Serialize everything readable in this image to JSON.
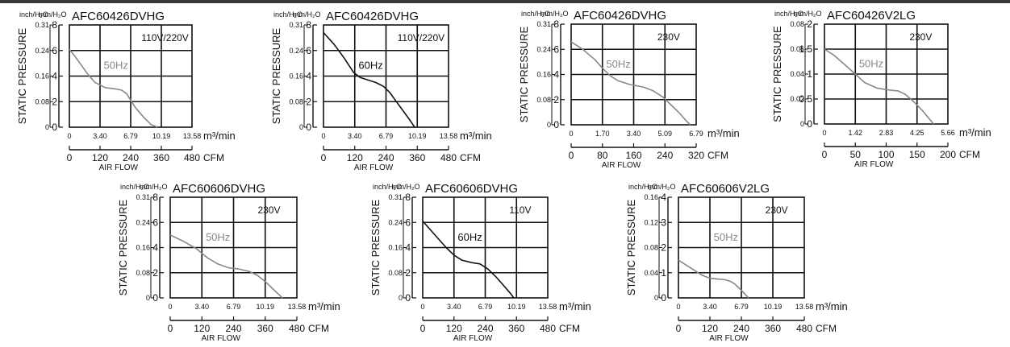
{
  "chart_data": [
    {
      "type": "line",
      "title": "AFC60426DVHG",
      "voltage_label": "110V/220V",
      "curve_label": "50Hz",
      "curve_color": "#888888",
      "ylabel": "STATIC PRESSURE",
      "y_unit_inch": "inch/H₂O",
      "y_unit_mm": "mm/H₂O",
      "ylim": [
        0,
        8
      ],
      "y_ticks_mm": [
        "0",
        "2",
        "4",
        "6",
        "8"
      ],
      "y_ticks_inch": [
        "0",
        "0.08",
        "0.16",
        "0.24",
        "0.31"
      ],
      "x_ticks_m3": [
        "0",
        "3.40",
        "6.79",
        "10.19",
        "13.58"
      ],
      "x_unit_m3": "m³/min",
      "x_ticks_cfm": [
        "0",
        "120",
        "240",
        "360",
        "480"
      ],
      "x_unit_cfm": "CFM",
      "xlabel": "AIR FLOW",
      "xlim": [
        0,
        480
      ],
      "series": [
        {
          "x": [
            0,
            20,
            45,
            70,
            100,
            140,
            180,
            205,
            225,
            240,
            260,
            290,
            320,
            345
          ],
          "y": [
            6.1,
            5.6,
            4.9,
            4.2,
            3.5,
            3.1,
            3.0,
            2.9,
            2.6,
            2.1,
            1.5,
            0.8,
            0.2,
            0
          ]
        }
      ]
    },
    {
      "type": "line",
      "title": "AFC60426DVHG",
      "voltage_label": "110V/220V",
      "curve_label": "60Hz",
      "curve_color": "#111111",
      "ylabel": "STATIC PRESSURE",
      "y_unit_inch": "inch/H₂O",
      "y_unit_mm": "mm/H₂O",
      "ylim": [
        0,
        8
      ],
      "y_ticks_mm": [
        "0",
        "2",
        "4",
        "6",
        "8"
      ],
      "y_ticks_inch": [
        "0",
        "0.08",
        "0.16",
        "0.24",
        "0.31"
      ],
      "x_ticks_m3": [
        "0",
        "3.40",
        "6.79",
        "10.19",
        "13.58"
      ],
      "x_unit_m3": "m³/min",
      "x_ticks_cfm": [
        "0",
        "120",
        "240",
        "360",
        "480"
      ],
      "x_unit_cfm": "CFM",
      "xlabel": "AIR FLOW",
      "xlim": [
        0,
        480
      ],
      "series": [
        {
          "x": [
            0,
            40,
            80,
            115,
            140,
            170,
            200,
            230,
            255,
            280,
            305,
            330,
            350
          ],
          "y": [
            7.4,
            6.5,
            5.4,
            4.3,
            3.9,
            3.7,
            3.5,
            3.2,
            2.7,
            2.0,
            1.3,
            0.6,
            0
          ]
        }
      ]
    },
    {
      "type": "line",
      "title": "AFC60426DVHG",
      "voltage_label": "230V",
      "curve_label": "50Hz",
      "curve_color": "#888888",
      "ylabel": "STATIC PRESSURE",
      "y_unit_inch": "inch/H₂O",
      "y_unit_mm": "mm/H₂O",
      "ylim": [
        0,
        8
      ],
      "y_ticks_mm": [
        "0",
        "2",
        "4",
        "6",
        "8"
      ],
      "y_ticks_inch": [
        "0",
        "0.08",
        "0.16",
        "0.24",
        "0.31"
      ],
      "x_ticks_m3": [
        "0",
        "1.70",
        "3.40",
        "5.09",
        "6.79"
      ],
      "x_unit_m3": "m³/min",
      "x_ticks_cfm": [
        "0",
        "80",
        "160",
        "240",
        "320"
      ],
      "x_unit_cfm": "CFM",
      "xlabel": "AIR FLOW",
      "xlim": [
        0,
        320
      ],
      "series": [
        {
          "x": [
            0,
            30,
            60,
            80,
            100,
            120,
            150,
            185,
            210,
            235,
            255,
            275,
            295,
            305
          ],
          "y": [
            6.6,
            6.0,
            5.2,
            4.5,
            3.9,
            3.5,
            3.2,
            3.0,
            2.7,
            2.2,
            1.6,
            1.0,
            0.3,
            0
          ]
        }
      ]
    },
    {
      "type": "line",
      "title": "AFC60426V2LG",
      "voltage_label": "230V",
      "curve_label": "50Hz",
      "curve_color": "#888888",
      "ylabel": "STATIC PRESSURE",
      "y_unit_inch": "inch/H₂O",
      "y_unit_mm": "mm/H₂O",
      "ylim": [
        0,
        2
      ],
      "y_ticks_mm": [
        "0",
        "0.5",
        "1",
        "1.5",
        "2"
      ],
      "y_ticks_inch": [
        "0",
        "0.02",
        "0.04",
        "0.06",
        "0.08"
      ],
      "x_ticks_m3": [
        "0",
        "1.42",
        "2.83",
        "4.25",
        "5.66"
      ],
      "x_unit_m3": "m³/min",
      "x_ticks_cfm": [
        "0",
        "50",
        "100",
        "150",
        "200"
      ],
      "x_unit_cfm": "CFM",
      "xlabel": "AIR FLOW",
      "xlim": [
        0,
        200
      ],
      "series": [
        {
          "x": [
            0,
            15,
            30,
            50,
            65,
            85,
            105,
            120,
            130,
            140,
            150,
            160,
            170,
            177
          ],
          "y": [
            1.5,
            1.38,
            1.22,
            1.0,
            0.83,
            0.72,
            0.68,
            0.66,
            0.6,
            0.5,
            0.38,
            0.25,
            0.1,
            0
          ]
        }
      ]
    },
    {
      "type": "line",
      "title": "AFC60606DVHG",
      "voltage_label": "230V",
      "curve_label": "50Hz",
      "curve_color": "#888888",
      "ylabel": "STATIC PRESSURE",
      "y_unit_inch": "inch/H₂O",
      "y_unit_mm": "mm/H₂O",
      "ylim": [
        0,
        8
      ],
      "y_ticks_mm": [
        "0",
        "2",
        "4",
        "6",
        "8"
      ],
      "y_ticks_inch": [
        "0",
        "0.08",
        "0.16",
        "0.24",
        "0.31"
      ],
      "x_ticks_m3": [
        "0",
        "3.40",
        "6.79",
        "10.19",
        "13.58"
      ],
      "x_unit_m3": "m³/min",
      "x_ticks_cfm": [
        "0",
        "120",
        "240",
        "360",
        "480"
      ],
      "x_unit_cfm": "CFM",
      "xlabel": "AIR FLOW",
      "xlim": [
        0,
        480
      ],
      "series": [
        {
          "x": [
            0,
            50,
            100,
            140,
            180,
            220,
            260,
            300,
            330,
            360,
            385,
            410,
            425
          ],
          "y": [
            5.0,
            4.5,
            3.9,
            3.2,
            2.7,
            2.4,
            2.3,
            2.1,
            1.8,
            1.3,
            0.8,
            0.3,
            0
          ]
        }
      ]
    },
    {
      "type": "line",
      "title": "AFC60606DVHG",
      "voltage_label": "110V",
      "curve_label": "60Hz",
      "curve_color": "#111111",
      "ylabel": "STATIC PRESSURE",
      "y_unit_inch": "inch/H₂O",
      "y_unit_mm": "mm/H₂O",
      "ylim": [
        0,
        8
      ],
      "y_ticks_mm": [
        "0",
        "2",
        "4",
        "6",
        "8"
      ],
      "y_ticks_inch": [
        "0",
        "0.08",
        "0.16",
        "0.24",
        "0.31"
      ],
      "x_ticks_m3": [
        "0",
        "3.40",
        "6.79",
        "10.19",
        "13.58"
      ],
      "x_unit_m3": "m³/min",
      "x_ticks_cfm": [
        "0",
        "120",
        "240",
        "360",
        "480"
      ],
      "x_unit_cfm": "CFM",
      "xlabel": "AIR FLOW",
      "xlim": [
        0,
        480
      ],
      "series": [
        {
          "x": [
            0,
            30,
            60,
            90,
            120,
            150,
            190,
            220,
            250,
            280,
            310,
            335,
            350
          ],
          "y": [
            6.1,
            5.4,
            4.7,
            4.0,
            3.4,
            3.0,
            2.8,
            2.7,
            2.3,
            1.7,
            1.0,
            0.4,
            0
          ]
        }
      ]
    },
    {
      "type": "line",
      "title": "AFC60606V2LG",
      "voltage_label": "230V",
      "curve_label": "50Hz",
      "curve_color": "#888888",
      "ylabel": "STATIC PRESSURE",
      "y_unit_inch": "inch/H₂O",
      "y_unit_mm": "mm/H₂O",
      "ylim": [
        0,
        4
      ],
      "y_ticks_mm": [
        "0",
        "1",
        "2",
        "3",
        "4"
      ],
      "y_ticks_inch": [
        "0",
        "0.04",
        "0.08",
        "0.12",
        "0.16"
      ],
      "x_ticks_m3": [
        "0",
        "3.40",
        "6.79",
        "10.19",
        "13.58"
      ],
      "x_unit_m3": "m³/min",
      "x_ticks_cfm": [
        "0",
        "120",
        "240",
        "360",
        "480"
      ],
      "x_unit_cfm": "CFM",
      "xlabel": "AIR FLOW",
      "xlim": [
        0,
        480
      ],
      "series": [
        {
          "x": [
            0,
            30,
            60,
            90,
            120,
            150,
            180,
            200,
            215,
            230,
            245,
            258,
            268
          ],
          "y": [
            1.5,
            1.3,
            1.1,
            0.9,
            0.78,
            0.75,
            0.72,
            0.65,
            0.55,
            0.4,
            0.25,
            0.1,
            0
          ]
        }
      ]
    }
  ]
}
